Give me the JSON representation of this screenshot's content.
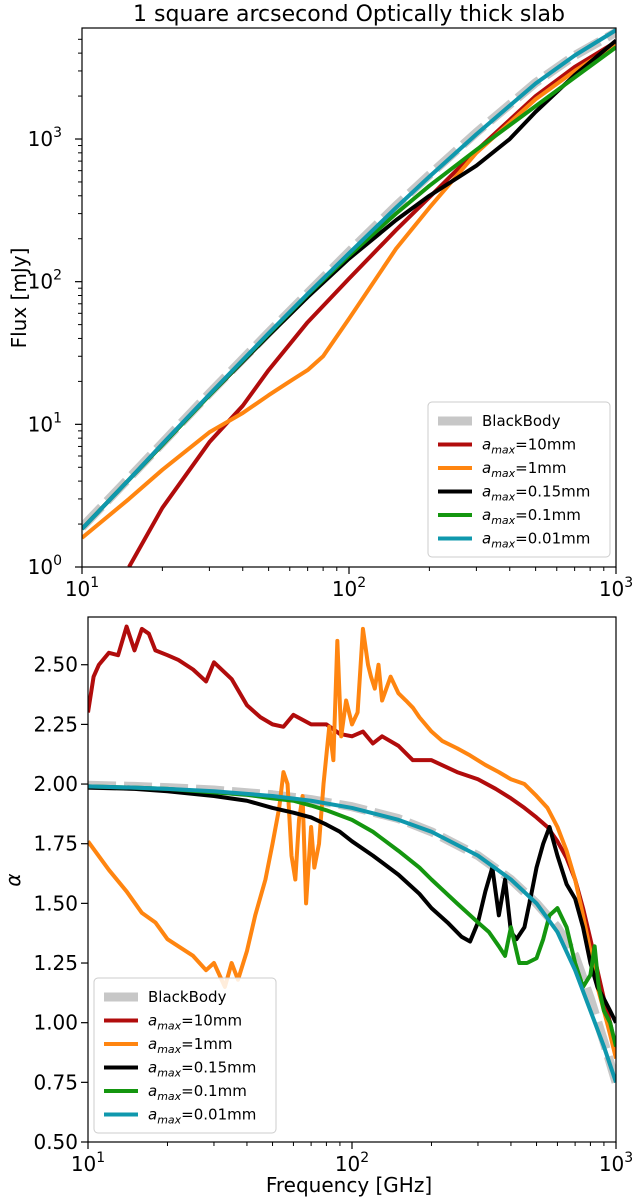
{
  "chart_data": [
    {
      "type": "line",
      "title": "1 square arcsecond Optically thick slab",
      "xlabel": "",
      "ylabel": "Flux [mJy]",
      "xscale": "log",
      "yscale": "log",
      "xlim": [
        10,
        1000
      ],
      "ylim": [
        1,
        6000
      ],
      "x_ticks": [
        {
          "value": 10,
          "label": "10",
          "exp": "1"
        },
        {
          "value": 100,
          "label": "10",
          "exp": "2"
        },
        {
          "value": 1000,
          "label": "10",
          "exp": "3"
        }
      ],
      "y_ticks": [
        {
          "value": 1,
          "label": "10",
          "exp": "0"
        },
        {
          "value": 10,
          "label": "10",
          "exp": "1"
        },
        {
          "value": 100,
          "label": "10",
          "exp": "2"
        },
        {
          "value": 1000,
          "label": "10",
          "exp": "3"
        }
      ],
      "grid": false,
      "legend_position": "lower-right",
      "series": [
        {
          "name": "BlackBody",
          "name_sub": "",
          "name_suffix": "",
          "color": "#c7c7c7",
          "style": "dashed-thick",
          "x": [
            10,
            15,
            20,
            30,
            50,
            70,
            100,
            150,
            200,
            300,
            500,
            700,
            1000
          ],
          "y": [
            1.9,
            4.2,
            7.4,
            16.5,
            44,
            83,
            162,
            340,
            560,
            1110,
            2480,
            3850,
            5600
          ]
        },
        {
          "name": "a",
          "name_sub": "max",
          "name_suffix": "=10mm",
          "color": "#b10c0c",
          "style": "solid",
          "x": [
            15,
            20,
            30,
            40,
            50,
            70,
            100,
            150,
            200,
            300,
            500,
            700,
            1000
          ],
          "y": [
            1.0,
            2.6,
            7.5,
            13.5,
            24,
            52,
            105,
            230,
            390,
            830,
            2000,
            3200,
            4800
          ]
        },
        {
          "name": "a",
          "name_sub": "max",
          "name_suffix": "=1mm",
          "color": "#ff8510",
          "style": "solid",
          "x": [
            10,
            15,
            20,
            30,
            40,
            50,
            60,
            70,
            80,
            100,
            150,
            200,
            300,
            500,
            700,
            1000
          ],
          "y": [
            1.6,
            3.0,
            4.8,
            8.8,
            12,
            16,
            20,
            24,
            30,
            55,
            170,
            330,
            800,
            1900,
            3000,
            4600
          ]
        },
        {
          "name": "a",
          "name_sub": "max",
          "name_suffix": "=0.15mm",
          "color": "#000000",
          "style": "solid",
          "x": [
            10,
            15,
            20,
            30,
            50,
            70,
            100,
            150,
            200,
            300,
            400,
            500,
            700,
            1000
          ],
          "y": [
            1.85,
            4.1,
            7.2,
            16,
            42,
            78,
            145,
            270,
            400,
            650,
            1000,
            1550,
            2800,
            4900
          ]
        },
        {
          "name": "a",
          "name_sub": "max",
          "name_suffix": "=0.1mm",
          "color": "#14960f",
          "style": "solid",
          "x": [
            10,
            15,
            20,
            30,
            50,
            70,
            100,
            150,
            200,
            300,
            500,
            700,
            1000
          ],
          "y": [
            1.85,
            4.1,
            7.2,
            16,
            43,
            81,
            152,
            300,
            470,
            840,
            1700,
            2700,
            4400
          ]
        },
        {
          "name": "a",
          "name_sub": "max",
          "name_suffix": "=0.01mm",
          "color": "#0f98ad",
          "style": "solid",
          "x": [
            10,
            15,
            20,
            30,
            50,
            70,
            100,
            150,
            200,
            300,
            500,
            700,
            1000
          ],
          "y": [
            1.85,
            4.1,
            7.3,
            16.2,
            43.5,
            82,
            158,
            330,
            545,
            1080,
            2450,
            3850,
            5800
          ]
        }
      ]
    },
    {
      "type": "line",
      "title": "",
      "xlabel": "Frequency [GHz]",
      "ylabel": "α",
      "xscale": "log",
      "yscale": "linear",
      "xlim": [
        10,
        1000
      ],
      "ylim": [
        0.5,
        2.7
      ],
      "x_ticks": [
        {
          "value": 10,
          "label": "10",
          "exp": "1"
        },
        {
          "value": 100,
          "label": "10",
          "exp": "2"
        },
        {
          "value": 1000,
          "label": "10",
          "exp": "3"
        }
      ],
      "y_ticks": [
        {
          "value": 0.5,
          "label": "0.50"
        },
        {
          "value": 0.75,
          "label": "0.75"
        },
        {
          "value": 1.0,
          "label": "1.00"
        },
        {
          "value": 1.25,
          "label": "1.25"
        },
        {
          "value": 1.5,
          "label": "1.50"
        },
        {
          "value": 1.75,
          "label": "1.75"
        },
        {
          "value": 2.0,
          "label": "2.00"
        },
        {
          "value": 2.25,
          "label": "2.25"
        },
        {
          "value": 2.5,
          "label": "2.50"
        }
      ],
      "grid": false,
      "legend_position": "lower-left",
      "series": [
        {
          "name": "BlackBody",
          "name_sub": "",
          "name_suffix": "",
          "color": "#c7c7c7",
          "style": "dashed-thick",
          "x": [
            10,
            15,
            20,
            30,
            50,
            70,
            100,
            150,
            200,
            300,
            400,
            500,
            600,
            700,
            800,
            900,
            1000
          ],
          "y": [
            1.995,
            1.99,
            1.985,
            1.975,
            1.955,
            1.935,
            1.905,
            1.855,
            1.8,
            1.7,
            1.6,
            1.5,
            1.4,
            1.28,
            1.1,
            0.92,
            0.75
          ]
        },
        {
          "name": "a",
          "name_sub": "max",
          "name_suffix": "=10mm",
          "color": "#b10c0c",
          "style": "solid",
          "x": [
            10,
            10.5,
            11,
            12,
            13,
            14,
            15,
            16,
            17,
            18,
            20,
            22,
            25,
            28,
            30,
            35,
            40,
            45,
            50,
            55,
            60,
            70,
            80,
            90,
            100,
            110,
            120,
            130,
            150,
            170,
            200,
            250,
            300,
            350,
            400,
            450,
            500,
            550,
            600,
            650,
            700,
            750,
            800,
            850,
            900,
            950,
            1000
          ],
          "y": [
            2.3,
            2.45,
            2.5,
            2.55,
            2.54,
            2.66,
            2.56,
            2.65,
            2.63,
            2.56,
            2.54,
            2.52,
            2.48,
            2.43,
            2.51,
            2.44,
            2.33,
            2.28,
            2.25,
            2.24,
            2.29,
            2.25,
            2.25,
            2.21,
            2.2,
            2.22,
            2.17,
            2.2,
            2.16,
            2.1,
            2.1,
            2.05,
            2.02,
            1.98,
            1.94,
            1.9,
            1.86,
            1.82,
            1.76,
            1.69,
            1.6,
            1.48,
            1.35,
            1.22,
            1.1,
            1.0,
            0.88
          ]
        },
        {
          "name": "a",
          "name_sub": "max",
          "name_suffix": "=1mm",
          "color": "#ff8510",
          "style": "solid",
          "x": [
            10,
            12,
            14,
            16,
            18,
            20,
            22,
            25,
            28,
            30,
            33,
            35,
            37,
            40,
            43,
            47,
            50,
            53,
            55,
            57,
            59,
            61,
            63,
            65,
            67,
            70,
            72,
            75,
            78,
            82,
            85,
            88,
            91,
            95,
            100,
            105,
            110,
            115,
            118,
            122,
            126,
            130,
            140,
            150,
            160,
            170,
            180,
            200,
            220,
            250,
            280,
            320,
            360,
            400,
            450,
            500,
            550,
            600,
            650,
            700,
            750,
            800,
            850,
            900,
            950,
            1000
          ],
          "y": [
            1.76,
            1.64,
            1.55,
            1.46,
            1.42,
            1.35,
            1.32,
            1.28,
            1.22,
            1.25,
            1.15,
            1.25,
            1.18,
            1.3,
            1.45,
            1.6,
            1.75,
            1.9,
            2.05,
            2.0,
            1.7,
            1.6,
            1.85,
            1.95,
            1.5,
            1.82,
            1.65,
            1.75,
            2.0,
            2.24,
            2.1,
            2.6,
            2.2,
            2.35,
            2.25,
            2.3,
            2.65,
            2.5,
            2.45,
            2.4,
            2.5,
            2.35,
            2.45,
            2.38,
            2.35,
            2.32,
            2.28,
            2.22,
            2.18,
            2.15,
            2.12,
            2.08,
            2.05,
            2.02,
            2.0,
            1.95,
            1.9,
            1.82,
            1.72,
            1.6,
            1.45,
            1.3,
            1.15,
            1.05,
            0.95,
            0.85
          ]
        },
        {
          "name": "a",
          "name_sub": "max",
          "name_suffix": "=0.15mm",
          "color": "#000000",
          "style": "solid",
          "x": [
            10,
            15,
            20,
            30,
            40,
            50,
            60,
            70,
            80,
            90,
            100,
            120,
            150,
            180,
            200,
            230,
            260,
            280,
            300,
            320,
            340,
            360,
            380,
            400,
            420,
            450,
            480,
            500,
            530,
            560,
            600,
            650,
            700,
            750,
            800,
            850,
            900,
            950,
            1000
          ],
          "y": [
            1.985,
            1.98,
            1.97,
            1.95,
            1.93,
            1.9,
            1.88,
            1.86,
            1.83,
            1.8,
            1.76,
            1.7,
            1.62,
            1.54,
            1.48,
            1.42,
            1.36,
            1.34,
            1.42,
            1.55,
            1.65,
            1.45,
            1.6,
            1.38,
            1.35,
            1.4,
            1.55,
            1.65,
            1.75,
            1.82,
            1.7,
            1.58,
            1.52,
            1.4,
            1.25,
            1.15,
            1.1,
            1.05,
            1.0
          ]
        },
        {
          "name": "a",
          "name_sub": "max",
          "name_suffix": "=0.1mm",
          "color": "#14960f",
          "style": "solid",
          "x": [
            10,
            15,
            20,
            30,
            40,
            50,
            60,
            70,
            80,
            100,
            120,
            150,
            180,
            200,
            250,
            300,
            330,
            360,
            380,
            400,
            430,
            460,
            500,
            530,
            560,
            600,
            650,
            700,
            750,
            800,
            830,
            860,
            900,
            950,
            1000
          ],
          "y": [
            1.99,
            1.985,
            1.98,
            1.965,
            1.955,
            1.94,
            1.93,
            1.91,
            1.89,
            1.85,
            1.8,
            1.72,
            1.65,
            1.6,
            1.5,
            1.42,
            1.38,
            1.32,
            1.28,
            1.4,
            1.25,
            1.25,
            1.27,
            1.35,
            1.45,
            1.48,
            1.4,
            1.25,
            1.15,
            1.2,
            1.32,
            1.15,
            1.05,
            1.0,
            0.9
          ]
        },
        {
          "name": "a",
          "name_sub": "max",
          "name_suffix": "=0.01mm",
          "color": "#0f98ad",
          "style": "solid",
          "x": [
            10,
            15,
            20,
            30,
            50,
            70,
            100,
            150,
            200,
            300,
            400,
            500,
            600,
            700,
            800,
            900,
            1000
          ],
          "y": [
            1.99,
            1.985,
            1.98,
            1.97,
            1.95,
            1.93,
            1.9,
            1.85,
            1.8,
            1.7,
            1.6,
            1.5,
            1.38,
            1.22,
            1.05,
            0.9,
            0.75
          ]
        }
      ]
    }
  ]
}
